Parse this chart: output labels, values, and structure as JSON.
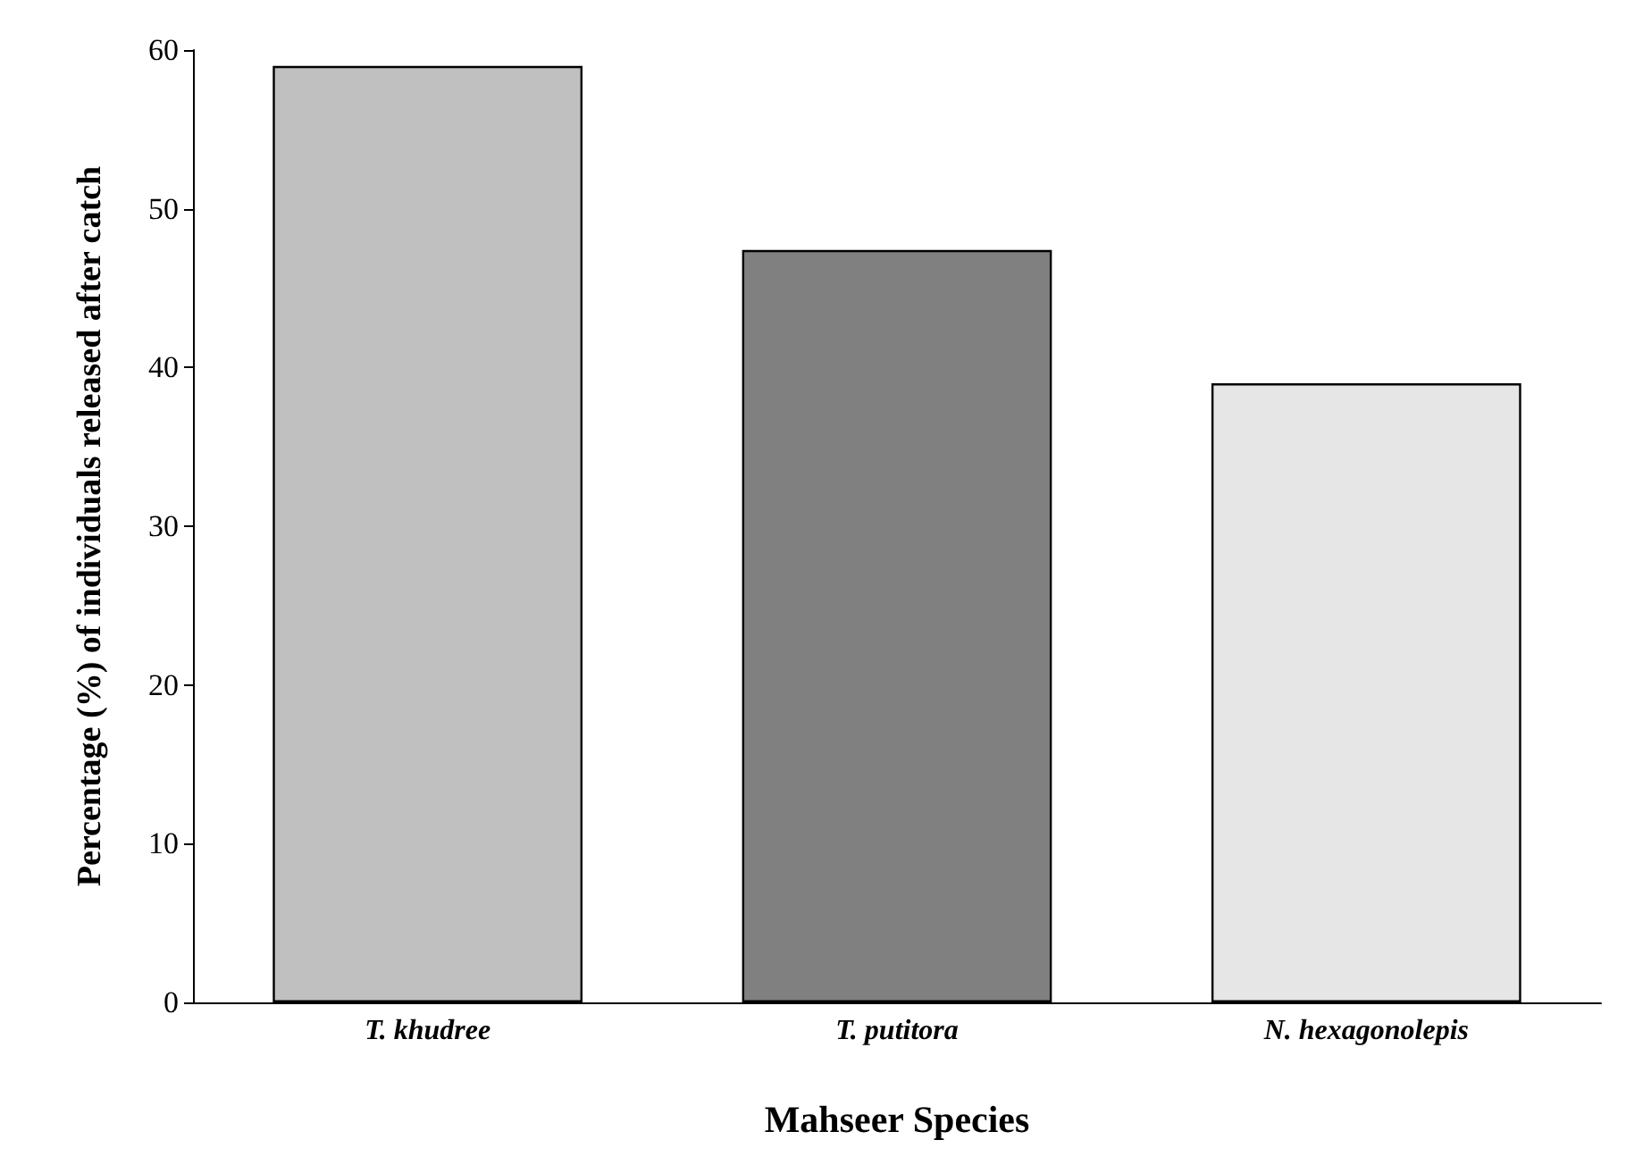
{
  "chart_data": {
    "type": "bar",
    "xlabel": "Mahseer Species",
    "ylabel": "Percentage (%) of individuals released after catch",
    "categories": [
      "T. khudree",
      "T. putitora",
      "N. hexagonolepis"
    ],
    "values": [
      59,
      47.4,
      39
    ],
    "colors": [
      "#c0c0c0",
      "#808080",
      "#e6e6e6"
    ],
    "ylim": [
      0,
      60
    ],
    "yticks": [
      0,
      10,
      20,
      30,
      40,
      50,
      60
    ],
    "grid": false
  }
}
